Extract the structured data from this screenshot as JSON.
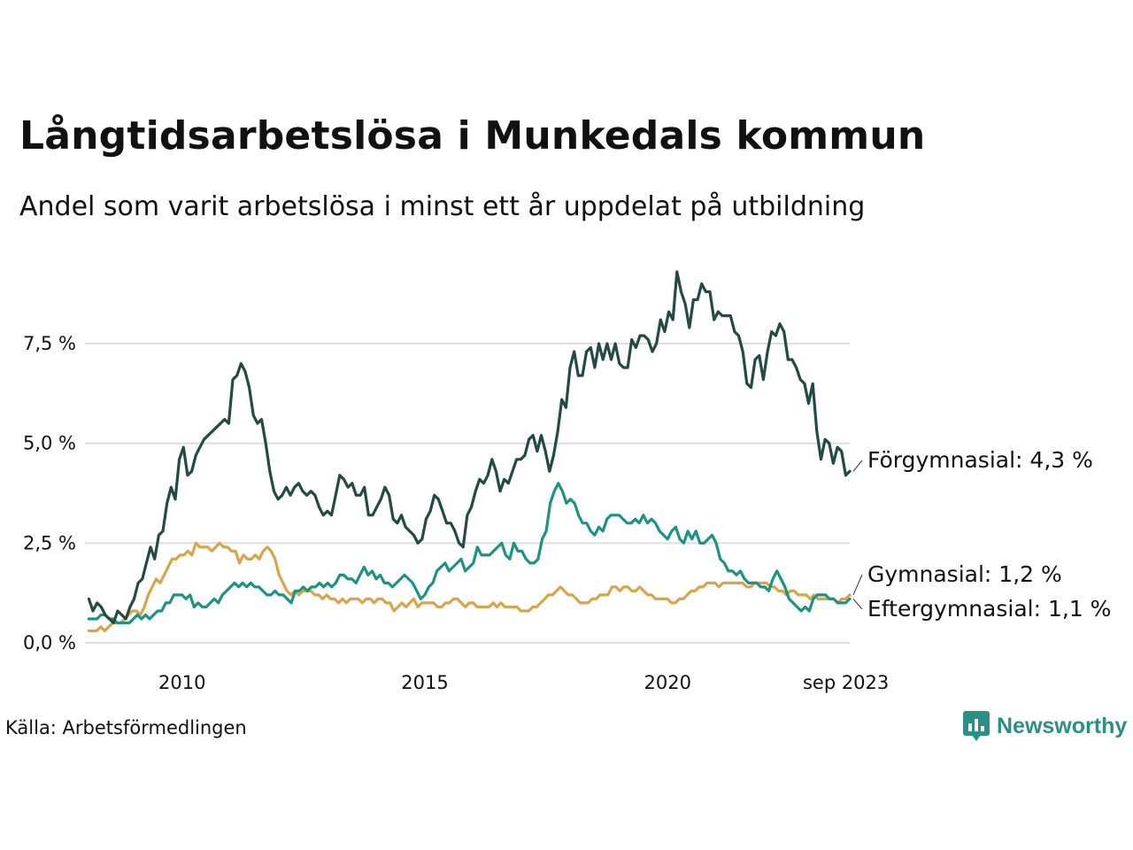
{
  "header": {
    "title": "Långtidsarbetslösa i Munkedals kommun",
    "subtitle": "Andel som varit arbetslösa i minst ett år uppdelat på utbildning"
  },
  "footer": {
    "source": "Källa: Arbetsförmedlingen",
    "brand": "Newsworthy"
  },
  "colors": {
    "forgymnasial": "#234a45",
    "gymnasial": "#d6a64e",
    "eftergymnasial": "#1f9283",
    "grid": "#dddddd",
    "brand": "#2a8f84"
  },
  "icons": {
    "brand_logo": "newsworthy-logo-icon"
  },
  "chart_data": {
    "type": "line",
    "title": "Långtidsarbetslösa i Munkedals kommun",
    "subtitle": "Andel som varit arbetslösa i minst ett år uppdelat på utbildning",
    "xlabel": "",
    "ylabel": "",
    "x_start": 2008.08,
    "x_end": 2023.75,
    "xlim": [
      2008.0,
      2023.75
    ],
    "ylim": [
      0,
      9.5
    ],
    "x_ticks": [
      2010,
      2015,
      2020,
      2023.67
    ],
    "x_tick_labels": [
      "2010",
      "2015",
      "2020",
      "sep 2023"
    ],
    "y_ticks": [
      0,
      2.5,
      5.0,
      7.5
    ],
    "y_tick_labels": [
      "0,0 %",
      "2,5 %",
      "5,0 %",
      "7,5 %"
    ],
    "grid": true,
    "legend": "direct labels at line ends, right",
    "series": [
      {
        "name": "Förgymnasial",
        "end_label": "Förgymnasial: 4,3 %",
        "values": [
          1.1,
          0.8,
          1.0,
          0.9,
          0.7,
          0.6,
          0.5,
          0.8,
          0.7,
          0.6,
          0.9,
          1.1,
          1.5,
          1.6,
          2.0,
          2.4,
          2.1,
          2.7,
          2.8,
          3.5,
          3.9,
          3.6,
          4.6,
          4.9,
          4.2,
          4.3,
          4.7,
          4.9,
          5.1,
          5.2,
          5.3,
          5.4,
          5.5,
          5.6,
          5.5,
          6.6,
          6.7,
          7.0,
          6.8,
          6.4,
          5.7,
          5.5,
          5.6,
          5.0,
          4.3,
          3.8,
          3.6,
          3.7,
          3.9,
          3.7,
          3.9,
          4.0,
          3.8,
          3.7,
          3.8,
          3.7,
          3.4,
          3.2,
          3.3,
          3.2,
          3.7,
          4.2,
          4.1,
          3.9,
          4.0,
          3.7,
          3.7,
          3.9,
          3.2,
          3.2,
          3.4,
          3.6,
          3.9,
          3.7,
          3.1,
          3.0,
          3.2,
          2.9,
          2.8,
          2.7,
          2.5,
          2.6,
          3.1,
          3.3,
          3.7,
          3.6,
          3.3,
          3.0,
          3.0,
          2.8,
          2.5,
          2.4,
          3.2,
          3.4,
          3.8,
          4.1,
          4.0,
          4.2,
          4.6,
          4.3,
          3.8,
          4.1,
          4.0,
          4.3,
          4.6,
          4.6,
          4.7,
          5.1,
          5.2,
          4.8,
          5.2,
          4.8,
          4.3,
          4.7,
          5.3,
          6.1,
          5.9,
          6.9,
          7.3,
          6.7,
          6.7,
          7.3,
          7.4,
          6.9,
          7.5,
          7.1,
          7.5,
          7.1,
          7.5,
          7.0,
          6.9,
          6.9,
          7.6,
          7.4,
          7.7,
          7.7,
          7.6,
          7.3,
          7.5,
          8.1,
          7.8,
          8.3,
          8.1,
          9.3,
          8.8,
          8.5,
          7.9,
          8.6,
          8.6,
          9.0,
          8.8,
          8.8,
          8.1,
          8.3,
          8.2,
          8.2,
          8.2,
          7.8,
          7.7,
          7.3,
          6.5,
          6.4,
          7.1,
          7.2,
          6.6,
          7.3,
          7.8,
          7.7,
          8.0,
          7.8,
          7.1,
          7.1,
          6.9,
          6.6,
          6.5,
          6.0,
          6.5,
          5.3,
          4.6,
          5.1,
          5.0,
          4.5,
          4.9,
          4.8,
          4.2,
          4.3
        ]
      },
      {
        "name": "Gymnasial",
        "end_label": "Gymnasial: 1,2 %",
        "values": [
          0.3,
          0.3,
          0.3,
          0.4,
          0.3,
          0.4,
          0.5,
          0.5,
          0.5,
          0.6,
          0.7,
          0.8,
          0.8,
          0.7,
          0.9,
          1.2,
          1.4,
          1.6,
          1.5,
          1.7,
          1.9,
          2.1,
          2.1,
          2.2,
          2.2,
          2.3,
          2.2,
          2.5,
          2.4,
          2.4,
          2.4,
          2.3,
          2.4,
          2.5,
          2.4,
          2.4,
          2.3,
          2.3,
          2.0,
          2.2,
          2.1,
          2.1,
          2.2,
          2.1,
          2.3,
          2.4,
          2.3,
          2.1,
          1.7,
          1.5,
          1.3,
          1.2,
          1.3,
          1.2,
          1.3,
          1.3,
          1.3,
          1.2,
          1.2,
          1.1,
          1.2,
          1.1,
          1.1,
          1.0,
          1.1,
          1.0,
          1.1,
          1.1,
          1.1,
          1.0,
          1.1,
          1.1,
          1.0,
          1.1,
          1.1,
          1.0,
          1.0,
          0.8,
          0.9,
          1.0,
          0.9,
          1.0,
          1.1,
          0.9,
          1.0,
          1.0,
          1.0,
          1.0,
          0.9,
          0.9,
          1.0,
          1.0,
          1.1,
          1.1,
          1.0,
          0.9,
          1.0,
          1.0,
          0.9,
          0.9,
          0.9,
          0.9,
          1.0,
          0.9,
          1.0,
          0.9,
          0.9,
          0.9,
          0.9,
          0.8,
          0.8,
          0.8,
          0.9,
          0.9,
          1.0,
          1.1,
          1.2,
          1.2,
          1.3,
          1.4,
          1.3,
          1.2,
          1.2,
          1.1,
          1.0,
          1.0,
          1.0,
          1.1,
          1.1,
          1.2,
          1.2,
          1.2,
          1.4,
          1.4,
          1.3,
          1.4,
          1.4,
          1.3,
          1.3,
          1.4,
          1.3,
          1.2,
          1.2,
          1.1,
          1.1,
          1.1,
          1.1,
          1.0,
          1.0,
          1.1,
          1.1,
          1.2,
          1.3,
          1.3,
          1.4,
          1.4,
          1.5,
          1.5,
          1.5,
          1.4,
          1.5,
          1.5,
          1.5,
          1.5,
          1.5,
          1.5,
          1.4,
          1.4,
          1.5,
          1.5,
          1.5,
          1.5,
          1.4,
          1.4,
          1.3,
          1.3,
          1.2,
          1.3,
          1.3,
          1.2,
          1.2,
          1.2,
          1.1,
          1.2,
          1.1,
          1.1,
          1.1,
          1.1,
          1.1,
          1.0,
          1.1,
          1.1,
          1.2
        ]
      },
      {
        "name": "Eftergymnasial",
        "end_label": "Eftergymnasial: 1,1 %",
        "values": [
          0.6,
          0.6,
          0.6,
          0.7,
          0.7,
          0.6,
          0.6,
          0.5,
          0.5,
          0.5,
          0.5,
          0.6,
          0.7,
          0.6,
          0.7,
          0.6,
          0.7,
          0.8,
          0.8,
          1.0,
          1.0,
          1.2,
          1.2,
          1.2,
          1.1,
          1.2,
          0.9,
          1.0,
          0.9,
          0.9,
          1.0,
          1.1,
          1.0,
          1.2,
          1.3,
          1.4,
          1.5,
          1.4,
          1.5,
          1.4,
          1.5,
          1.4,
          1.4,
          1.3,
          1.2,
          1.2,
          1.3,
          1.2,
          1.2,
          1.1,
          1.0,
          1.3,
          1.3,
          1.4,
          1.3,
          1.4,
          1.4,
          1.5,
          1.4,
          1.5,
          1.4,
          1.5,
          1.7,
          1.7,
          1.6,
          1.6,
          1.5,
          1.7,
          1.9,
          1.7,
          1.8,
          1.6,
          1.7,
          1.5,
          1.5,
          1.4,
          1.5,
          1.6,
          1.7,
          1.6,
          1.5,
          1.3,
          1.1,
          1.2,
          1.4,
          1.5,
          1.8,
          1.9,
          2.0,
          1.8,
          1.9,
          2.0,
          2.1,
          1.8,
          1.9,
          2.0,
          2.4,
          2.2,
          2.2,
          2.2,
          2.3,
          2.4,
          2.5,
          2.2,
          2.1,
          2.5,
          2.3,
          2.3,
          2.1,
          2.0,
          2.0,
          2.1,
          2.6,
          2.8,
          3.5,
          3.8,
          4.0,
          3.8,
          3.5,
          3.6,
          3.5,
          3.2,
          3.0,
          3.0,
          2.8,
          2.7,
          2.9,
          2.8,
          3.1,
          3.2,
          3.2,
          3.2,
          3.1,
          3.0,
          3.0,
          3.1,
          3.0,
          3.2,
          3.0,
          3.1,
          3.0,
          2.8,
          2.7,
          2.6,
          2.8,
          2.9,
          2.6,
          2.5,
          2.8,
          2.6,
          2.8,
          2.5,
          2.5,
          2.6,
          2.7,
          2.5,
          2.1,
          2.0,
          1.8,
          1.8,
          1.7,
          1.8,
          1.6,
          1.5,
          1.5,
          1.5,
          1.4,
          1.4,
          1.3,
          1.6,
          1.8,
          1.6,
          1.4,
          1.1,
          1.0,
          0.9,
          0.8,
          0.9,
          0.8,
          1.1,
          1.2,
          1.2,
          1.2,
          1.1,
          1.1,
          1.0,
          1.0,
          1.0,
          1.1
        ]
      }
    ]
  }
}
